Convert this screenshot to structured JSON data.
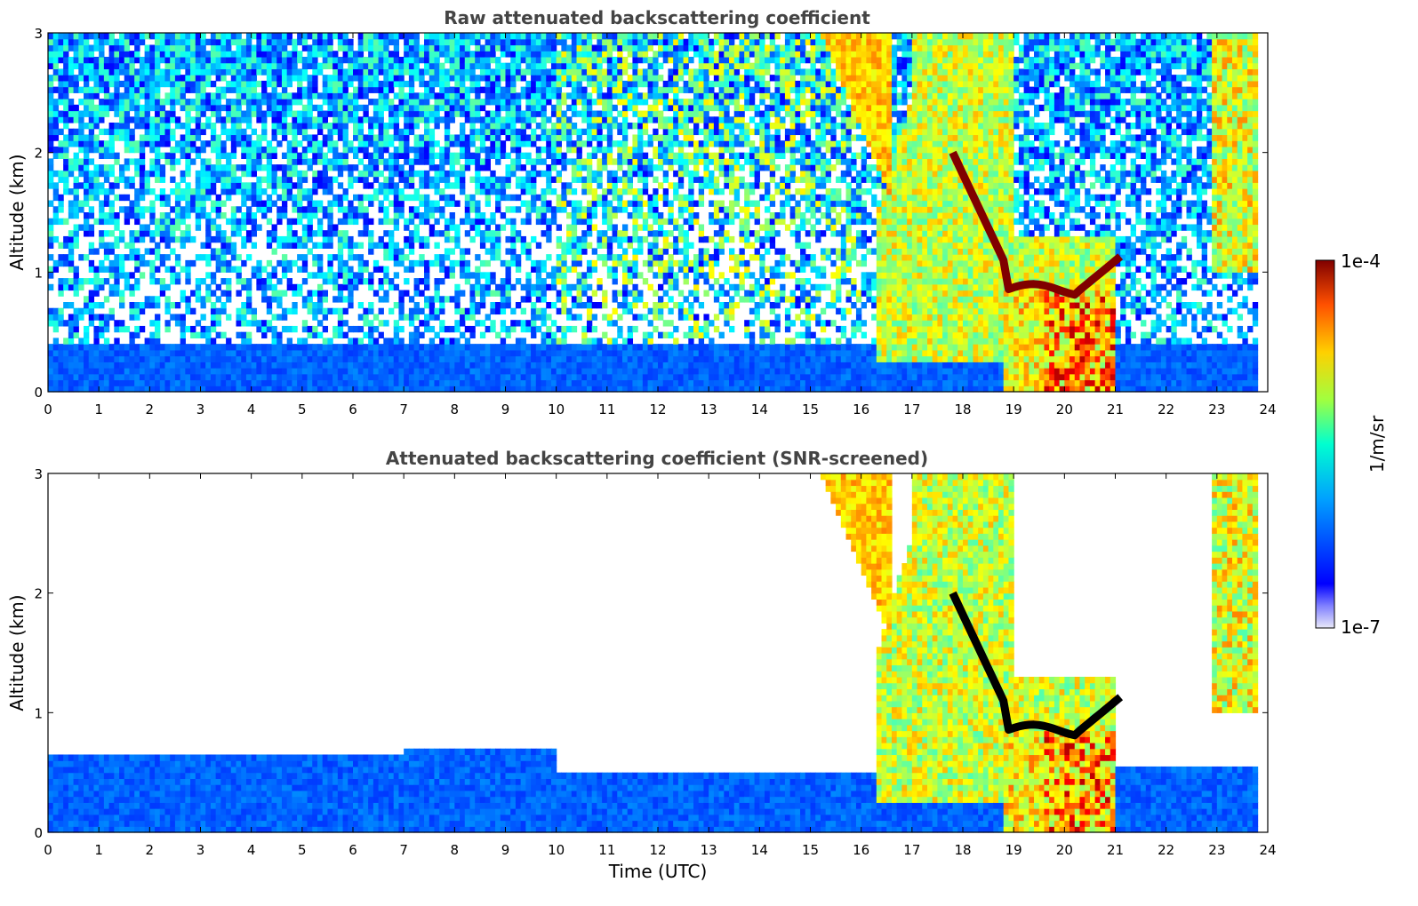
{
  "chart_data": [
    {
      "type": "heatmap",
      "title": "Raw attenuated backscattering coefficient",
      "xlabel": "",
      "ylabel": "Altitude (km)",
      "xlim": [
        0,
        24
      ],
      "ylim": [
        0,
        3
      ],
      "x_ticks": [
        "0",
        "1",
        "2",
        "3",
        "4",
        "5",
        "6",
        "7",
        "8",
        "9",
        "10",
        "11",
        "12",
        "13",
        "14",
        "15",
        "16",
        "17",
        "18",
        "19",
        "20",
        "21",
        "22",
        "23",
        "24"
      ],
      "y_ticks": [
        "0",
        "1",
        "2",
        "3"
      ],
      "features": [
        {
          "name": "boundary layer",
          "t_start": 0,
          "t_end": 23.8,
          "alt_top": 0.4,
          "level": "low"
        },
        {
          "name": "lofted aerosol",
          "t_start": 16.2,
          "t_end": 21.0,
          "alt_bottom": 0.3,
          "alt_top": 3.0,
          "level": "medium"
        },
        {
          "name": "cloud layer",
          "t_start": 17.8,
          "t_end": 21.2,
          "alt": 0.85,
          "level": "very high"
        },
        {
          "name": "rain shaft",
          "t_start": 18.8,
          "t_end": 21.0,
          "alt_bottom": 0,
          "alt_top": 0.8,
          "level": "high"
        },
        {
          "name": "upper aerosol",
          "t_start": 22.8,
          "t_end": 23.8,
          "alt_bottom": 1.0,
          "alt_top": 3.0,
          "level": "medium"
        },
        {
          "name": "noise",
          "t_start": 0,
          "t_end": 23.8,
          "alt_bottom": 0.4,
          "alt_top": 3.0,
          "level": "noise"
        }
      ]
    },
    {
      "type": "heatmap",
      "title": "Attenuated backscattering coefficient (SNR-screened)",
      "xlabel": "Time (UTC)",
      "ylabel": "Altitude (km)",
      "xlim": [
        0,
        24
      ],
      "ylim": [
        0,
        3
      ],
      "x_ticks": [
        "0",
        "1",
        "2",
        "3",
        "4",
        "5",
        "6",
        "7",
        "8",
        "9",
        "10",
        "11",
        "12",
        "13",
        "14",
        "15",
        "16",
        "17",
        "18",
        "19",
        "20",
        "21",
        "22",
        "23",
        "24"
      ],
      "y_ticks": [
        "0",
        "1",
        "2",
        "3"
      ],
      "features": [
        {
          "name": "boundary layer",
          "t_start": 0,
          "t_end": 23.8,
          "alt_top": 0.7,
          "level": "low"
        },
        {
          "name": "lofted aerosol",
          "t_start": 16.2,
          "t_end": 21.0,
          "alt_bottom": 0.3,
          "alt_top": 3.0,
          "level": "medium"
        },
        {
          "name": "cloud layer",
          "t_start": 17.8,
          "t_end": 21.2,
          "alt": 0.85,
          "level": "saturated"
        },
        {
          "name": "rain shaft",
          "t_start": 18.8,
          "t_end": 21.0,
          "alt_bottom": 0,
          "alt_top": 0.8,
          "level": "high"
        },
        {
          "name": "upper aerosol",
          "t_start": 22.8,
          "t_end": 23.8,
          "alt_bottom": 1.0,
          "alt_top": 3.0,
          "level": "medium"
        }
      ]
    }
  ],
  "colorbar": {
    "label": "1/m/sr",
    "max_label": "1e-4",
    "min_label": "1e-7",
    "scale": "log",
    "colormap": "jet",
    "colors": [
      "#e8e8f8",
      "#0000ff",
      "#00a0ff",
      "#00ffd0",
      "#a0ff40",
      "#ffd000",
      "#ff5000",
      "#800000"
    ]
  }
}
